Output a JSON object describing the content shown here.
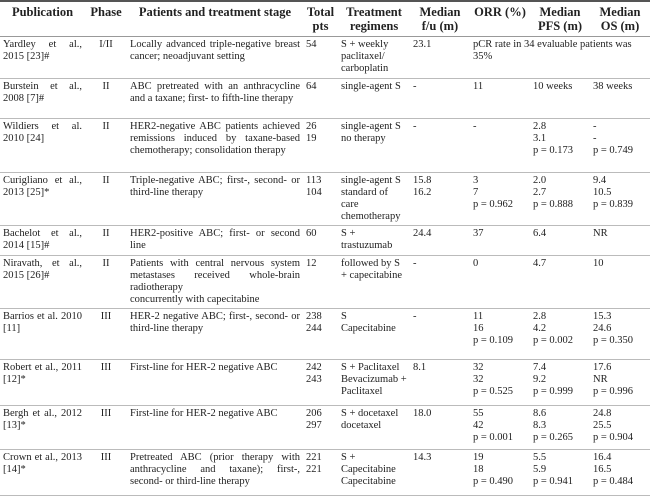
{
  "table": {
    "header": [
      "Publication",
      "Phase",
      "Patients and treatment stage",
      "Total pts",
      "Treatment regimens",
      "Median f/u (m)",
      "ORR (%)",
      "Median PFS (m)",
      "Median OS (m)"
    ],
    "rows": [
      [
        [
          "Yardley et al., 2015 [23]#"
        ],
        [
          "I/II"
        ],
        [
          "Locally advanced triple-negative breast cancer; neoadjuvant setting"
        ],
        [
          "54"
        ],
        [
          "S + weekly paclitaxel/ carboplatin"
        ],
        [
          "23.1"
        ],
        [
          "pCR rate in 34 evaluable patients was 35%"
        ]
      ],
      [
        [
          "Burstein et al., 2008 [7]#"
        ],
        [
          "II"
        ],
        [
          "ABC pretreated with an anthracycline and a taxane; first- to fifth-line therapy"
        ],
        [
          "64"
        ],
        [
          "single-agent S"
        ],
        [
          "-"
        ],
        [
          "11"
        ],
        [
          "10 weeks"
        ],
        [
          "38 weeks"
        ]
      ],
      [
        [
          "Wildiers et al. 2010 [24]"
        ],
        [
          "II"
        ],
        [
          "HER2-negative ABC patients achieved remissions induced by taxane-based chemotherapy; consolidation therapy"
        ],
        [
          "26",
          "19"
        ],
        [
          "single-agent S",
          "no therapy"
        ],
        [
          "-"
        ],
        [
          "-"
        ],
        [
          "2.8",
          "3.1",
          "p = 0.173"
        ],
        [
          "-",
          "-",
          "p = 0.749"
        ]
      ],
      [
        [
          "Curigliano et al., 2013 [25]*"
        ],
        [
          "II"
        ],
        [
          "Triple-negative ABC; first-, second- or third-line therapy"
        ],
        [
          "113",
          "104"
        ],
        [
          "single-agent S",
          "standard of care chemotherapy"
        ],
        [
          "15.8",
          "16.2"
        ],
        [
          "3",
          "7",
          "p = 0.962"
        ],
        [
          "2.0",
          "2.7",
          "p = 0.888"
        ],
        [
          "9.4",
          "10.5",
          "p = 0.839"
        ]
      ],
      [
        [
          "Bachelot et al., 2014 [15]#"
        ],
        [
          "II"
        ],
        [
          "HER2-positive ABC; first- or second line"
        ],
        [
          "60"
        ],
        [
          "S + trastuzumab"
        ],
        [
          "24.4"
        ],
        [
          "37"
        ],
        [
          "6.4"
        ],
        [
          "NR"
        ]
      ],
      [
        [
          "Niravath, et al., 2015 [26]#"
        ],
        [
          "II"
        ],
        [
          "Patients with central nervous system metastases received whole-brain radiotherapy",
          "concurrently with capecitabine"
        ],
        [
          "12"
        ],
        [
          "followed by S + capecitabine"
        ],
        [
          "-"
        ],
        [
          "0"
        ],
        [
          "4.7"
        ],
        [
          "10"
        ]
      ],
      [
        [
          "Barrios et al. 2010 [11]"
        ],
        [
          "III"
        ],
        [
          "HER-2 negative ABC; first-, second- or third-line therapy"
        ],
        [
          "238",
          "244"
        ],
        [
          "S",
          "Capecitabine"
        ],
        [
          "-"
        ],
        [
          "11",
          "16",
          "p = 0.109"
        ],
        [
          "2.8",
          "4.2",
          "p = 0.002"
        ],
        [
          "15.3",
          "24.6",
          "p = 0.350"
        ]
      ],
      [
        [
          "Robert et al., 2011 [12]*"
        ],
        [
          "III"
        ],
        [
          "First-line for HER-2 negative ABC"
        ],
        [
          "242",
          "243"
        ],
        [
          "S + Paclitaxel",
          "Bevacizumab + Paclitaxel"
        ],
        [
          "8.1"
        ],
        [
          "32",
          "32",
          "p = 0.525"
        ],
        [
          "7.4",
          "9.2",
          "p = 0.999"
        ],
        [
          "17.6",
          "NR",
          "p = 0.996"
        ]
      ],
      [
        [
          "Bergh et al., 2012 [13]*"
        ],
        [
          "III"
        ],
        [
          "First-line for HER-2 negative ABC"
        ],
        [
          "206",
          "297"
        ],
        [
          "S + docetaxel",
          "docetaxel"
        ],
        [
          "18.0"
        ],
        [
          "55",
          "42",
          "p = 0.001"
        ],
        [
          "8.6",
          "8.3",
          "p = 0.265"
        ],
        [
          "24.8",
          "25.5",
          "p = 0.904"
        ]
      ],
      [
        [
          "Crown et al., 2013 [14]*"
        ],
        [
          "III"
        ],
        [
          "Pretreated ABC (prior therapy with anthracycline and taxane); first-, second- or third-line therapy"
        ],
        [
          "221",
          "221"
        ],
        [
          "S + Capecitabine",
          "Capecitabine"
        ],
        [
          "14.3"
        ],
        [
          "19",
          "18",
          "p = 0.490"
        ],
        [
          "5.5",
          "5.9",
          "p = 0.941"
        ],
        [
          "16.4",
          "16.5",
          "p = 0.484"
        ]
      ]
    ]
  }
}
